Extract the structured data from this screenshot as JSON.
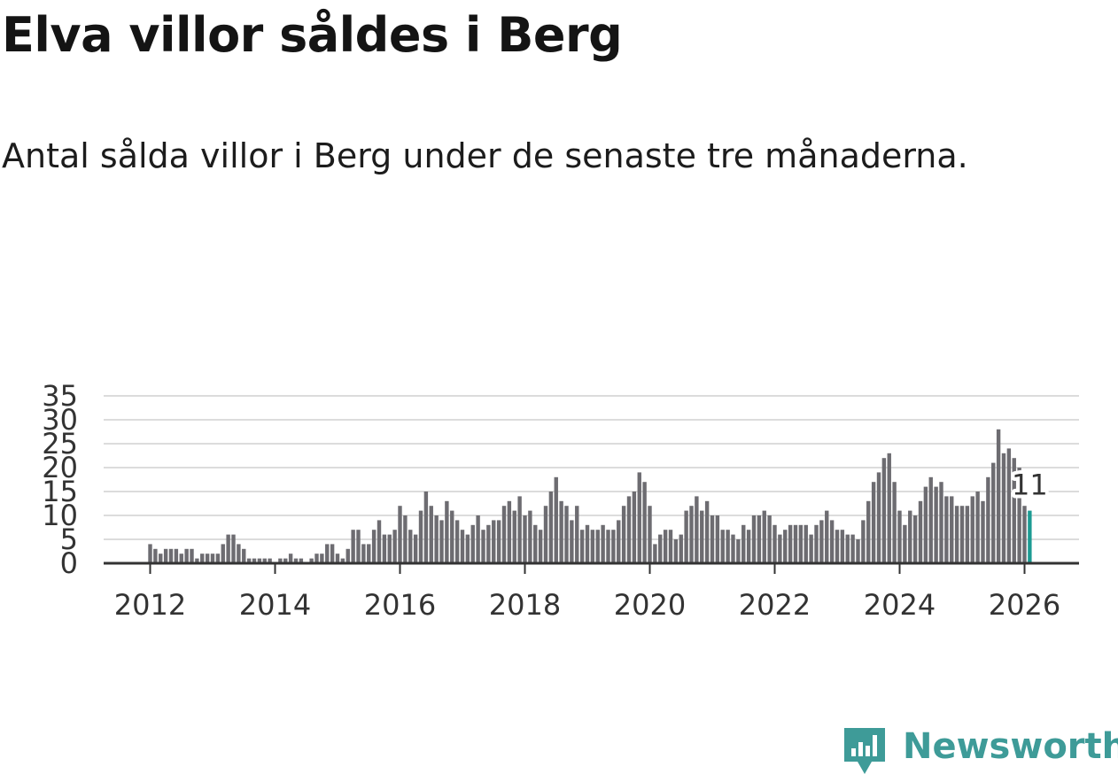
{
  "title": "Elva villor såldes i Berg",
  "subtitle": "Antal sålda villor i Berg under de senaste tre månaderna.",
  "brand": "Newsworthy",
  "colors": {
    "bar": "#6d6c71",
    "highlight": "#1c9b93",
    "grid": "#dcdcdc",
    "axis": "#333333",
    "brand": "#3e9b98"
  },
  "chart_data": {
    "type": "bar",
    "title": "Elva villor såldes i Berg",
    "xlabel": "",
    "ylabel": "",
    "ylim": [
      0,
      35
    ],
    "yticks": [
      0,
      5,
      10,
      15,
      20,
      25,
      30,
      35
    ],
    "xticks": [
      "2012",
      "2014",
      "2016",
      "2018",
      "2020",
      "2022",
      "2024",
      "2026"
    ],
    "x_start": "2012-01",
    "grid": true,
    "highlight_label": "11",
    "values": [
      4,
      3,
      2,
      3,
      3,
      3,
      2,
      3,
      3,
      1,
      2,
      2,
      2,
      2,
      4,
      6,
      6,
      4,
      3,
      1,
      1,
      1,
      1,
      1,
      0,
      1,
      1,
      2,
      1,
      1,
      0,
      1,
      2,
      2,
      4,
      4,
      2,
      1,
      3,
      7,
      7,
      4,
      4,
      7,
      9,
      6,
      6,
      7,
      12,
      10,
      7,
      6,
      11,
      15,
      12,
      10,
      9,
      13,
      11,
      9,
      7,
      6,
      8,
      10,
      7,
      8,
      9,
      9,
      12,
      13,
      11,
      14,
      10,
      11,
      8,
      7,
      12,
      15,
      18,
      13,
      12,
      9,
      12,
      7,
      8,
      7,
      7,
      8,
      7,
      7,
      9,
      12,
      14,
      15,
      19,
      17,
      12,
      4,
      6,
      7,
      7,
      5,
      6,
      11,
      12,
      14,
      11,
      13,
      10,
      10,
      7,
      7,
      6,
      5,
      8,
      7,
      10,
      10,
      11,
      10,
      8,
      6,
      7,
      8,
      8,
      8,
      8,
      6,
      8,
      9,
      11,
      9,
      7,
      7,
      6,
      6,
      5,
      9,
      13,
      17,
      19,
      22,
      23,
      17,
      11,
      8,
      11,
      10,
      13,
      16,
      18,
      16,
      17,
      14,
      14,
      12,
      12,
      12,
      14,
      15,
      13,
      18,
      21,
      28,
      23,
      24,
      22,
      20,
      12,
      11
    ]
  }
}
